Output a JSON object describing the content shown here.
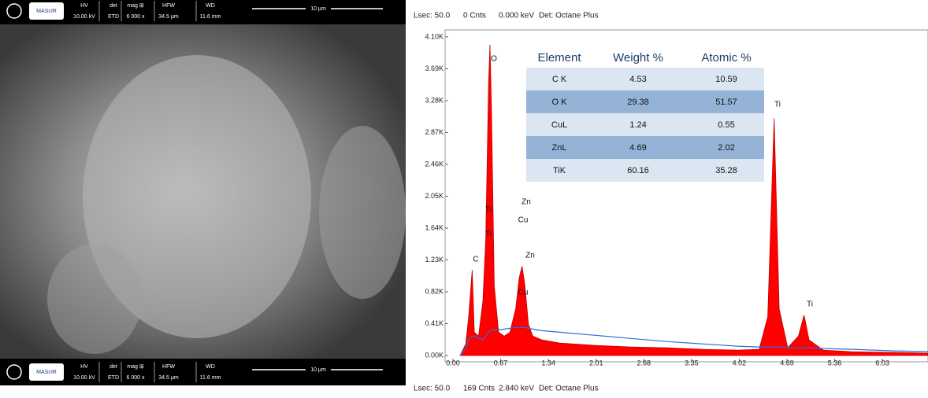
{
  "sem_bar": {
    "logo": "MAScIR",
    "headers": [
      "HV",
      "det",
      "mag ⊞",
      "HFW",
      "WD"
    ],
    "values": [
      "10.00 kV",
      "ETD",
      "6 000 x",
      "34.5 μm",
      "11.6 mm"
    ],
    "scale": "10 μm"
  },
  "spectrum_header": [
    "Lsec: 50.0",
    "0 Cnts",
    "0.000 keV",
    "Det: Octane Plus"
  ],
  "spectrum_footer": [
    "Lsec: 50.0",
    "169 Cnts",
    "2.840 keV",
    "Det: Octane Plus"
  ],
  "table": {
    "columns": [
      "Element",
      "Weight %",
      "Atomic %"
    ],
    "rows": [
      [
        "C K",
        4.53,
        10.59
      ],
      [
        "O K",
        29.38,
        51.57
      ],
      [
        "CuL",
        1.24,
        0.55
      ],
      [
        "ZnL",
        4.69,
        2.02
      ],
      [
        "TiK",
        60.16,
        35.28
      ]
    ]
  },
  "chart_data": {
    "type": "area",
    "x": [
      0.1,
      0.18,
      0.22,
      0.27,
      0.3,
      0.36,
      0.42,
      0.46,
      0.5,
      0.52,
      0.54,
      0.58,
      0.64,
      0.72,
      0.8,
      0.88,
      0.93,
      0.97,
      1.01,
      1.06,
      1.12,
      1.25,
      1.5,
      2.0,
      2.5,
      3.0,
      3.5,
      4.0,
      4.3,
      4.42,
      4.51,
      4.58,
      4.7,
      4.85,
      4.93,
      5.0,
      5.2,
      5.6,
      6.2,
      6.67
    ],
    "series": [
      {
        "color": "#ff0000",
        "values": [
          0,
          150,
          500,
          1100,
          300,
          250,
          700,
          1500,
          3500,
          4000,
          3200,
          900,
          300,
          250,
          300,
          600,
          1000,
          1150,
          900,
          400,
          250,
          200,
          160,
          130,
          110,
          100,
          80,
          70,
          80,
          500,
          3050,
          600,
          100,
          250,
          520,
          200,
          70,
          50,
          40,
          30
        ]
      },
      {
        "color": "#2a6fdb",
        "values": [
          0,
          100,
          200,
          250,
          250,
          220,
          200,
          250,
          300,
          320,
          330,
          330,
          330,
          340,
          350,
          360,
          360,
          360,
          360,
          350,
          340,
          320,
          300,
          260,
          220,
          180,
          150,
          120,
          110,
          110,
          110,
          110,
          100,
          100,
          100,
          100,
          90,
          80,
          60,
          50
        ]
      }
    ],
    "xlim": [
      0,
      6.67
    ],
    "ylim": [
      0,
      4190
    ],
    "xticks": [
      {
        "value": 0,
        "label": "0.00"
      },
      0.67,
      1.34,
      2.01,
      2.68,
      3.35,
      4.02,
      4.69,
      5.36,
      6.03
    ],
    "yticks": [
      {
        "value": 0,
        "label": "0.00K"
      },
      {
        "value": 410,
        "label": "0.41K"
      },
      {
        "value": 820,
        "label": "0.82K"
      },
      {
        "value": 1230,
        "label": "1.23K"
      },
      {
        "value": 1640,
        "label": "1.64K"
      },
      {
        "value": 2050,
        "label": "2.05K"
      },
      {
        "value": 2460,
        "label": "2.46K"
      },
      {
        "value": 2870,
        "label": "2.87K"
      },
      {
        "value": 3280,
        "label": "3.28K"
      },
      {
        "value": 3690,
        "label": "3.69K"
      },
      {
        "value": 4100,
        "label": "4.10K"
      }
    ],
    "annotations": [
      "C",
      "O",
      "Ti",
      "Ti",
      "Zn",
      "Cu",
      "Zn",
      "Cu",
      "Ti",
      "Ti"
    ]
  }
}
